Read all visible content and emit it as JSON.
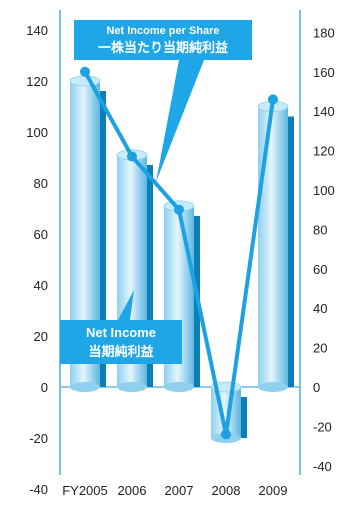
{
  "chart_data": {
    "type": "bar+line",
    "categories": [
      "FY2005",
      "2006",
      "2007",
      "2008",
      "2009"
    ],
    "series": [
      {
        "name": "Net Income",
        "name_ja": "当期純利益",
        "type": "bar",
        "axis": "left",
        "values": [
          120,
          91,
          71,
          -20,
          110
        ]
      },
      {
        "name": "Net Income per Share",
        "name_ja": "一株当たり当期純利益",
        "type": "line",
        "axis": "right",
        "values": [
          160,
          117,
          90,
          -24,
          146
        ]
      }
    ],
    "y_left": {
      "ylim": [
        -40,
        140
      ],
      "ticks": [
        "-40",
        "-20",
        "0",
        "20",
        "40",
        "60",
        "80",
        "100",
        "120",
        "140"
      ]
    },
    "y_right": {
      "ylim": [
        -40,
        180
      ],
      "ticks": [
        "-40",
        "-20",
        "0",
        "20",
        "40",
        "60",
        "80",
        "100",
        "120",
        "140",
        "160",
        "180"
      ]
    },
    "colors": {
      "bar": "#7cc6e8",
      "bar_light": "#d8f0fb",
      "bar_shadow": "#0b7fb8",
      "line": "#1da1e2",
      "callout": "#1ea6e6",
      "axis": "#4aaee0"
    },
    "grid": false
  }
}
